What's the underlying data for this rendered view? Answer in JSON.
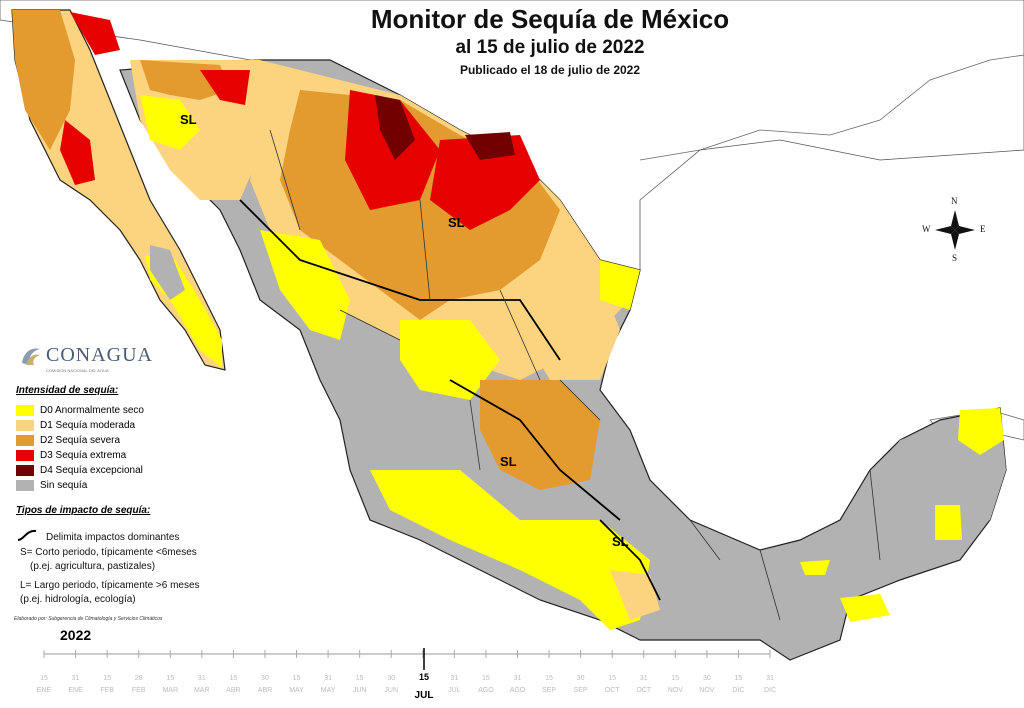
{
  "title": "Monitor de Sequía de México",
  "subtitle": "al 15 de julio de 2022",
  "published": "Publicado el 18 de julio de 2022",
  "logo": {
    "name": "CONAGUA",
    "tagline": "COMISIÓN NACIONAL DEL AGUA"
  },
  "legend": {
    "title": "Intensidad de sequía:",
    "items": [
      {
        "label": "D0 Anormalmente seco",
        "color": "#ffff00"
      },
      {
        "label": "D1 Sequía moderada",
        "color": "#fcd37f"
      },
      {
        "label": "D2 Sequía severa",
        "color": "#e39a2f"
      },
      {
        "label": "D3 Sequía extrema",
        "color": "#e60000"
      },
      {
        "label": "D4 Sequía excepcional",
        "color": "#730000"
      },
      {
        "label": "Sin sequía",
        "color": "#b2b2b2"
      }
    ]
  },
  "impacts": {
    "title": "Tipos de impacto de sequía:",
    "line_label": "Delimita impactos dominantes",
    "short": "S= Corto periodo, típicamente <6meses",
    "short_example": "(p.ej. agricultura, pastizales)",
    "long": "L= Largo periodo, típicamente >6 meses",
    "long_example": "(p.ej. hidrología, ecología)"
  },
  "credit": "Elaborado por: Subgerencia de Climatología y Servicios Climáticos",
  "year": "2022",
  "region_labels": [
    "SL",
    "SL",
    "SL",
    "SL"
  ],
  "compass": {
    "n": "N",
    "s": "S",
    "e": "E",
    "w": "W"
  },
  "timeline": {
    "current_day": "15",
    "current_month": "JUL",
    "ticks": [
      {
        "d": "15",
        "m": "ENE"
      },
      {
        "d": "31",
        "m": "ENE"
      },
      {
        "d": "15",
        "m": "FEB"
      },
      {
        "d": "28",
        "m": "FEB"
      },
      {
        "d": "15",
        "m": "MAR"
      },
      {
        "d": "31",
        "m": "MAR"
      },
      {
        "d": "15",
        "m": "ABR"
      },
      {
        "d": "30",
        "m": "ABR"
      },
      {
        "d": "15",
        "m": "MAY"
      },
      {
        "d": "31",
        "m": "MAY"
      },
      {
        "d": "15",
        "m": "JUN"
      },
      {
        "d": "30",
        "m": "JUN"
      },
      {
        "d": "15",
        "m": "JUL"
      },
      {
        "d": "31",
        "m": "JUL"
      },
      {
        "d": "15",
        "m": "AGO"
      },
      {
        "d": "31",
        "m": "AGO"
      },
      {
        "d": "15",
        "m": "SEP"
      },
      {
        "d": "30",
        "m": "SEP"
      },
      {
        "d": "15",
        "m": "OCT"
      },
      {
        "d": "31",
        "m": "OCT"
      },
      {
        "d": "15",
        "m": "NOV"
      },
      {
        "d": "30",
        "m": "NOV"
      },
      {
        "d": "15",
        "m": "DIC"
      },
      {
        "d": "31",
        "m": "DIC"
      }
    ]
  }
}
